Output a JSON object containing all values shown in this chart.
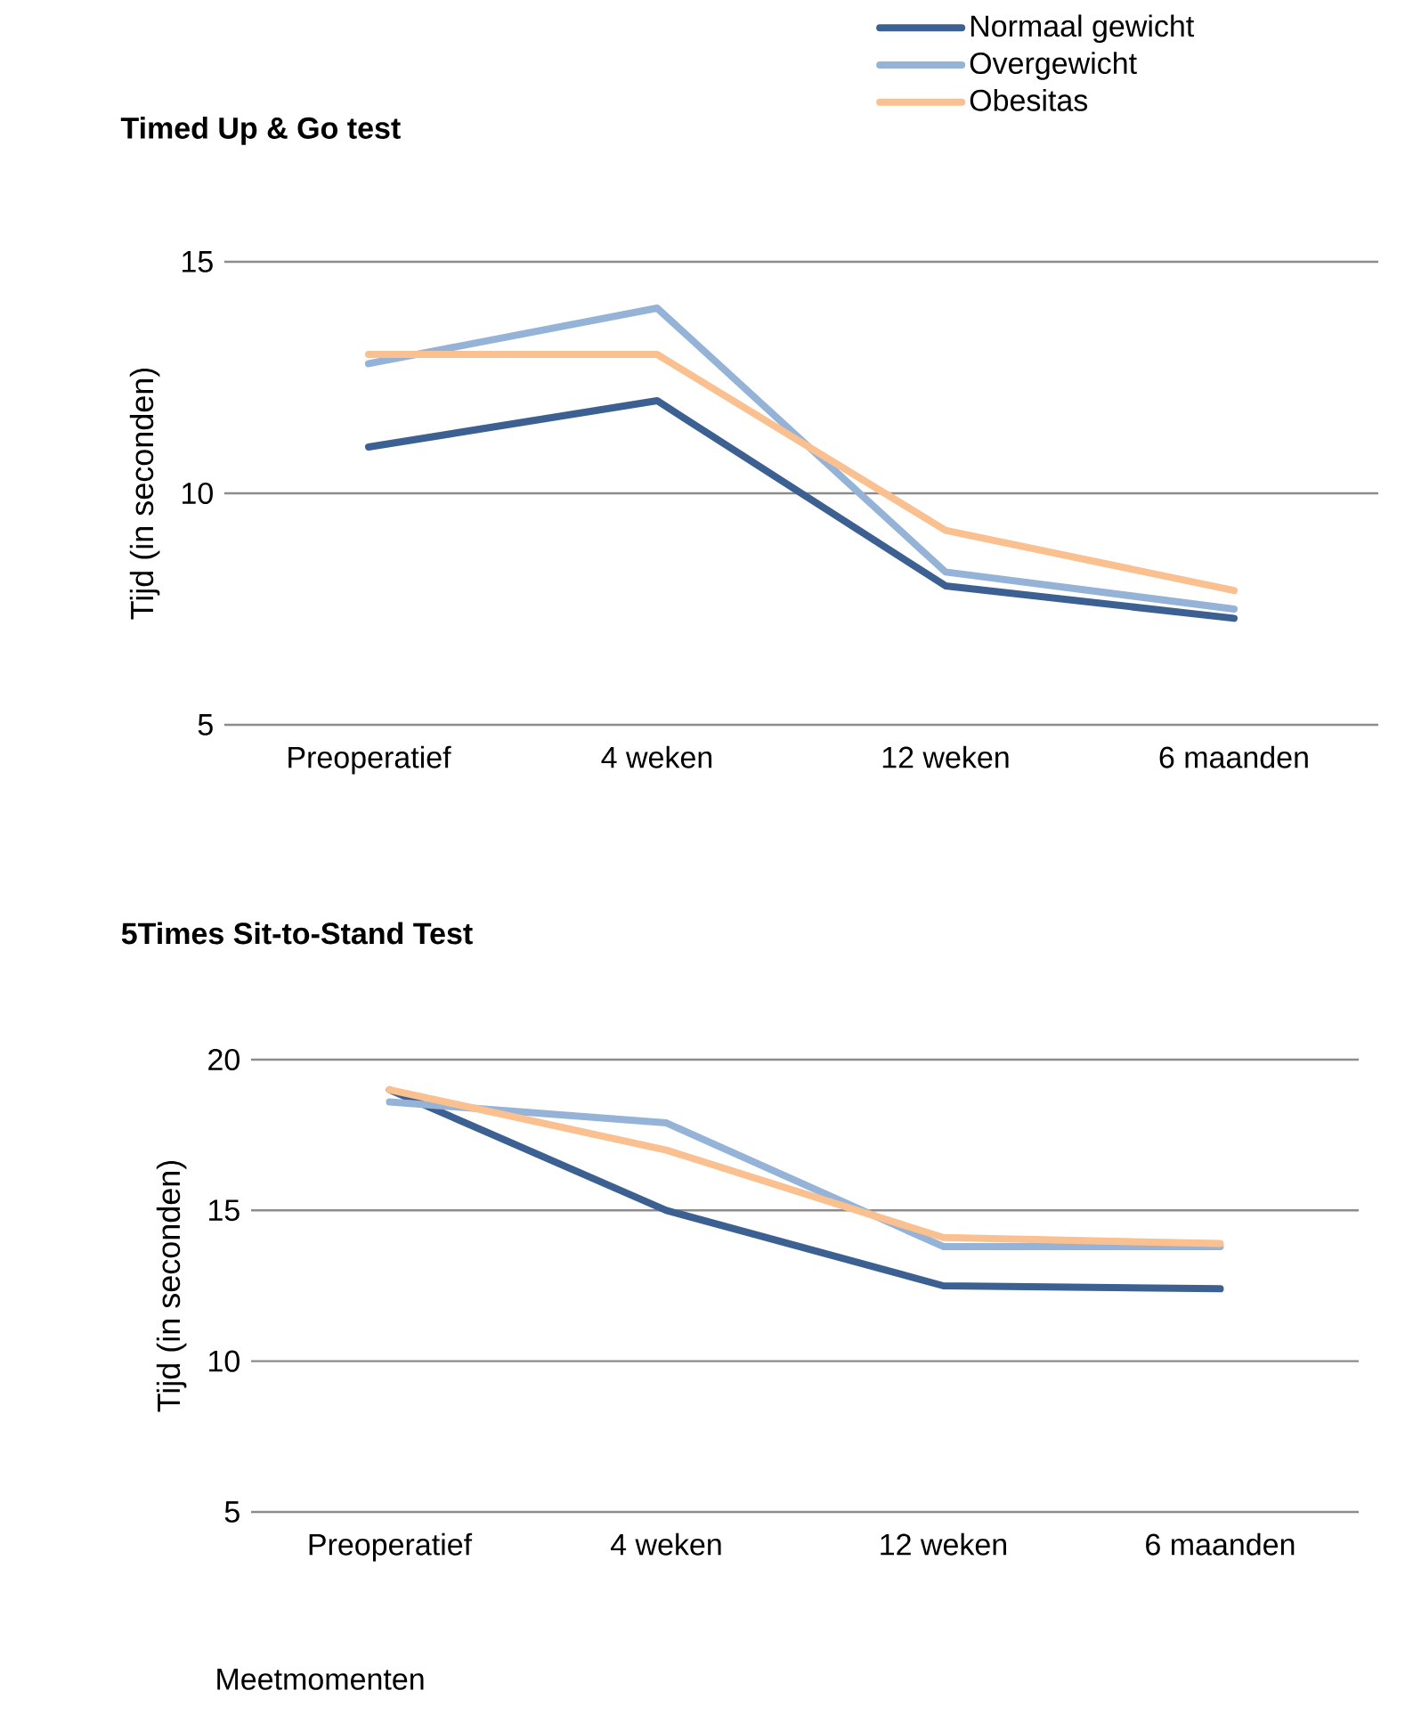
{
  "chart_data": [
    {
      "type": "line",
      "title": "Timed Up & Go test",
      "ylabel": "Tijd (in seconden)",
      "categories": [
        "Preoperatief",
        "4 weken",
        "12 weken",
        "6 maanden"
      ],
      "ylim": [
        5,
        15
      ],
      "yticks": [
        5,
        10,
        15
      ],
      "grid": "y",
      "legend": "top right",
      "line_style": "solid",
      "marker": "none",
      "series": [
        {
          "name": "Normaal gewicht",
          "color": "#3b6091",
          "values": [
            11.0,
            12.0,
            8.0,
            7.3
          ]
        },
        {
          "name": "Overgewicht",
          "color": "#95b3d7",
          "values": [
            12.8,
            14.0,
            8.3,
            7.5
          ]
        },
        {
          "name": "Obesitas",
          "color": "#fac08f",
          "values": [
            13.0,
            13.0,
            9.2,
            7.9
          ]
        }
      ]
    },
    {
      "type": "line",
      "title": "5Times Sit-to-Stand Test",
      "ylabel": "Tijd (in seconden)",
      "xlabel": "Meetmomenten",
      "categories": [
        "Preoperatief",
        "4 weken",
        "12 weken",
        "6 maanden"
      ],
      "ylim": [
        5,
        20
      ],
      "yticks": [
        5,
        10,
        15,
        20
      ],
      "grid": "y",
      "line_style": "solid",
      "marker": "none",
      "series": [
        {
          "color": "#3b6091",
          "values": [
            19.0,
            15.0,
            12.5,
            12.4
          ]
        },
        {
          "color": "#95b3d7",
          "values": [
            18.6,
            17.9,
            13.8,
            13.8
          ]
        },
        {
          "color": "#fac08f",
          "values": [
            19.0,
            17.0,
            14.1,
            13.9
          ]
        }
      ]
    }
  ]
}
